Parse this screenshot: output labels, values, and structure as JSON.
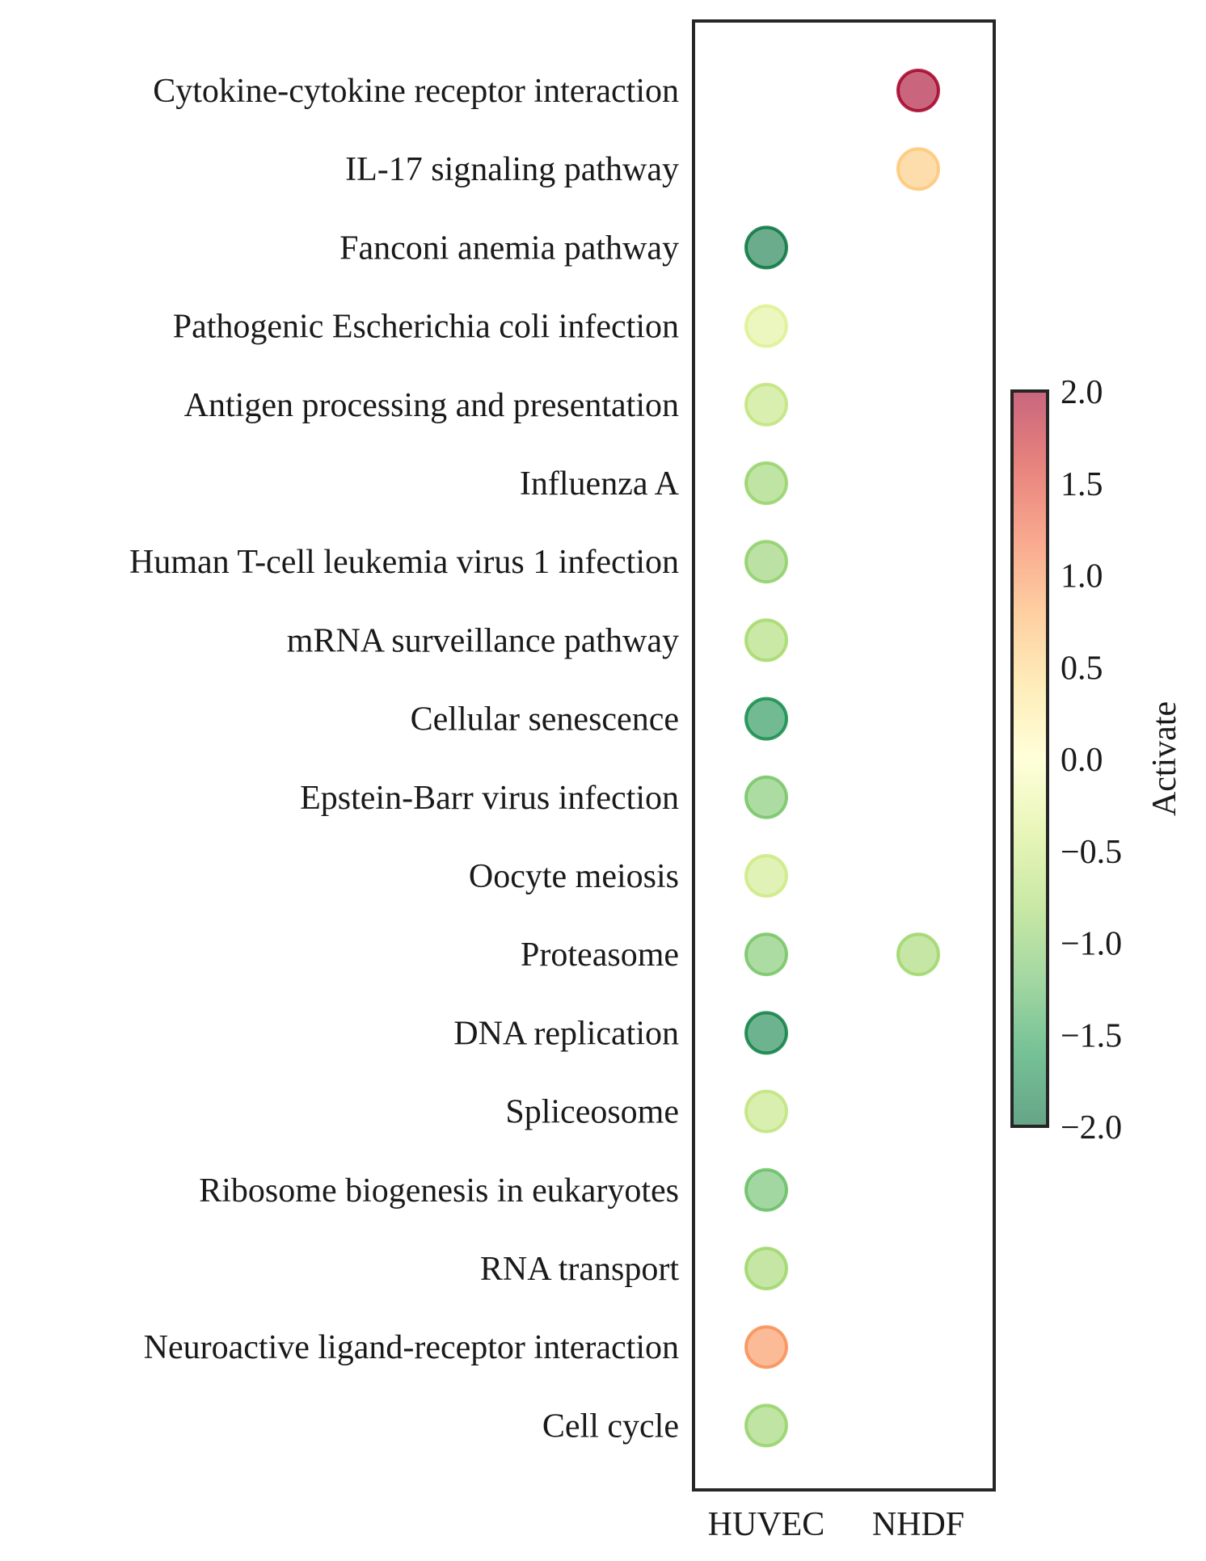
{
  "chart_data": {
    "type": "scatter",
    "x_categories": [
      "HUVEC",
      "NHDF"
    ],
    "y_categories": [
      "Cytokine-cytokine receptor interaction",
      "IL-17 signaling pathway",
      "Fanconi anemia pathway",
      "Pathogenic Escherichia coli infection",
      "Antigen processing and presentation",
      "Influenza A",
      "Human T-cell leukemia virus 1 infection",
      "mRNA surveillance pathway",
      "Cellular senescence",
      "Epstein-Barr virus infection",
      "Oocyte meiosis",
      "Proteasome",
      "DNA replication",
      "Spliceosome",
      "Ribosome biogenesis in eukaryotes",
      "RNA transport",
      "Neuroactive ligand-receptor interaction",
      "Cell cycle"
    ],
    "points": [
      {
        "x": "NHDF",
        "y": "Cytokine-cytokine receptor interaction",
        "value": 2.0
      },
      {
        "x": "NHDF",
        "y": "IL-17 signaling pathway",
        "value": 0.6
      },
      {
        "x": "HUVEC",
        "y": "Fanconi anemia pathway",
        "value": -1.9
      },
      {
        "x": "HUVEC",
        "y": "Pathogenic Escherichia coli infection",
        "value": -0.35
      },
      {
        "x": "HUVEC",
        "y": "Antigen processing and presentation",
        "value": -0.6
      },
      {
        "x": "HUVEC",
        "y": "Influenza A",
        "value": -0.9
      },
      {
        "x": "HUVEC",
        "y": "Human T-cell leukemia virus 1 infection",
        "value": -0.95
      },
      {
        "x": "HUVEC",
        "y": "mRNA surveillance pathway",
        "value": -0.8
      },
      {
        "x": "HUVEC",
        "y": "Cellular senescence",
        "value": -1.7
      },
      {
        "x": "HUVEC",
        "y": "Epstein-Barr virus infection",
        "value": -1.1
      },
      {
        "x": "HUVEC",
        "y": "Oocyte meiosis",
        "value": -0.5
      },
      {
        "x": "HUVEC",
        "y": "Proteasome",
        "value": -1.1
      },
      {
        "x": "NHDF",
        "y": "Proteasome",
        "value": -0.85
      },
      {
        "x": "HUVEC",
        "y": "DNA replication",
        "value": -1.8
      },
      {
        "x": "HUVEC",
        "y": "Spliceosome",
        "value": -0.6
      },
      {
        "x": "HUVEC",
        "y": "Ribosome biogenesis in eukaryotes",
        "value": -1.2
      },
      {
        "x": "HUVEC",
        "y": "RNA transport",
        "value": -0.85
      },
      {
        "x": "HUVEC",
        "y": "Neuroactive ligand-receptor interaction",
        "value": 1.0
      },
      {
        "x": "HUVEC",
        "y": "Cell cycle",
        "value": -0.9
      }
    ],
    "colorbar": {
      "label": "Activate",
      "min": -2.0,
      "max": 2.0,
      "ticks": [
        "2.0",
        "1.5",
        "1.0",
        "0.5",
        "0.0",
        "−0.5",
        "−1.0",
        "−1.5",
        "−2.0"
      ],
      "tick_values": [
        2.0,
        1.5,
        1.0,
        0.5,
        0.0,
        -0.5,
        -1.0,
        -1.5,
        -2.0
      ],
      "colormap": "RdYlGn_r",
      "alpha": 0.6
    },
    "grid": false,
    "legend": "colorbar-right"
  }
}
